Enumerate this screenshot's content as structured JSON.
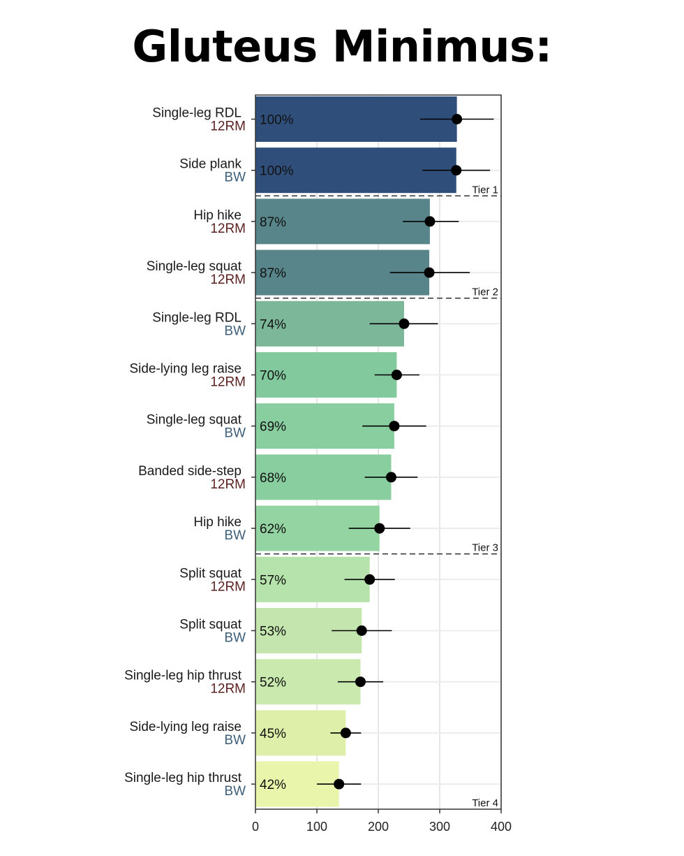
{
  "title": "Gluteus Minimus:",
  "chart_data": {
    "type": "bar",
    "orientation": "horizontal",
    "categories": [
      {
        "exercise": "Single-leg RDL",
        "load": "12RM",
        "percent": "100%",
        "value": 328,
        "ci": [
          268,
          388
        ],
        "color": "#2f4f7a"
      },
      {
        "exercise": "Side plank",
        "load": "BW",
        "percent": "100%",
        "value": 327,
        "ci": [
          272,
          382
        ],
        "color": "#2f4f7a"
      },
      {
        "exercise": "Hip hike",
        "load": "12RM",
        "percent": "87%",
        "value": 284,
        "ci": [
          240,
          331
        ],
        "color": "#58858a"
      },
      {
        "exercise": "Single-leg squat",
        "load": "12RM",
        "percent": "87%",
        "value": 283,
        "ci": [
          219,
          349
        ],
        "color": "#58858a"
      },
      {
        "exercise": "Single-leg RDL",
        "load": "BW",
        "percent": "74%",
        "value": 242,
        "ci": [
          186,
          297
        ],
        "color": "#7db79a"
      },
      {
        "exercise": "Side-lying leg raise",
        "load": "12RM",
        "percent": "70%",
        "value": 230,
        "ci": [
          194,
          267
        ],
        "color": "#82c99e"
      },
      {
        "exercise": "Single-leg squat",
        "load": "BW",
        "percent": "69%",
        "value": 226,
        "ci": [
          174,
          278
        ],
        "color": "#88ce9f"
      },
      {
        "exercise": "Banded side-step",
        "load": "12RM",
        "percent": "68%",
        "value": 221,
        "ci": [
          178,
          264
        ],
        "color": "#88ce9f"
      },
      {
        "exercise": "Hip hike",
        "load": "BW",
        "percent": "62%",
        "value": 202,
        "ci": [
          152,
          252
        ],
        "color": "#93d4a2"
      },
      {
        "exercise": "Split squat",
        "load": "12RM",
        "percent": "57%",
        "value": 186,
        "ci": [
          145,
          227
        ],
        "color": "#b6e2ab"
      },
      {
        "exercise": "Split squat",
        "load": "BW",
        "percent": "53%",
        "value": 173,
        "ci": [
          124,
          222
        ],
        "color": "#c4e6ae"
      },
      {
        "exercise": "Single-leg hip thrust",
        "load": "12RM",
        "percent": "52%",
        "value": 171,
        "ci": [
          134,
          208
        ],
        "color": "#c9e9ae"
      },
      {
        "exercise": "Side-lying leg raise",
        "load": "BW",
        "percent": "45%",
        "value": 147,
        "ci": [
          122,
          172
        ],
        "color": "#deefaa"
      },
      {
        "exercise": "Single-leg hip thrust",
        "load": "BW",
        "percent": "42%",
        "value": 136,
        "ci": [
          100,
          172
        ],
        "color": "#e8f5ab"
      }
    ],
    "tiers": [
      {
        "label": "Tier 1",
        "after_index": 1
      },
      {
        "label": "Tier 2",
        "after_index": 3
      },
      {
        "label": "Tier 3",
        "after_index": 8
      },
      {
        "label": "Tier 4",
        "after_index": 13
      }
    ],
    "xlim": [
      0,
      400
    ],
    "xticks": [
      0,
      100,
      200,
      300,
      400
    ],
    "grid": true
  }
}
